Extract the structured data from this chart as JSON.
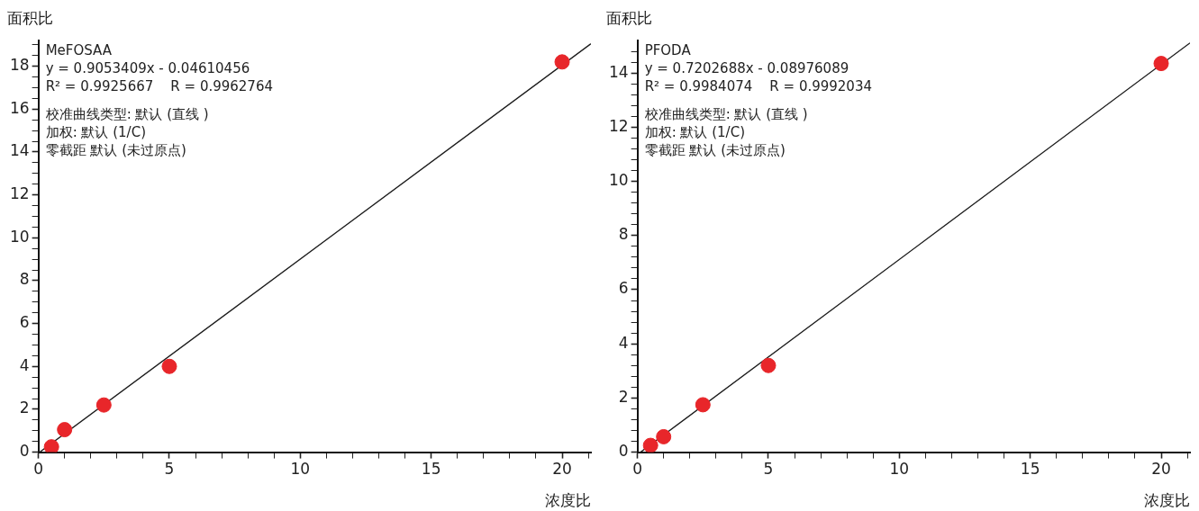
{
  "chart_data": [
    {
      "type": "scatter",
      "title": "MeFOSAA",
      "xlabel": "浓度比",
      "ylabel": "面积比",
      "annotations": [
        "y = 0.9053409x - 0.04610456",
        "R² = 0.9925667    R = 0.9962764",
        "校准曲线类型: 默认 (直线 )",
        "加权: 默认 (1/C)",
        "零截距 默认 (未过原点)"
      ],
      "x": [
        0.5,
        1,
        2.5,
        5,
        20
      ],
      "series": [
        {
          "color": "#e8262a",
          "values": [
            0.25,
            1.05,
            2.2,
            4.0,
            18.2
          ],
          "marker": "circle"
        },
        {
          "type": "line",
          "color": "#1a1a1a",
          "x": [
            0.05,
            21.1
          ],
          "values": [
            0,
            19.05
          ],
          "marker": "none",
          "line_style": "solid"
        }
      ],
      "xlim": [
        0,
        21.1
      ],
      "ylim": [
        0,
        19.2
      ],
      "xticks": [
        0,
        {
          "value": 1,
          "label": null
        },
        {
          "value": 2,
          "label": null
        },
        {
          "value": 3,
          "label": null
        },
        {
          "value": 4,
          "label": null
        },
        5,
        {
          "value": 6,
          "label": null
        },
        {
          "value": 7,
          "label": null
        },
        {
          "value": 8,
          "label": null
        },
        {
          "value": 9,
          "label": null
        },
        10,
        {
          "value": 11,
          "label": null
        },
        {
          "value": 12,
          "label": null
        },
        {
          "value": 13,
          "label": null
        },
        {
          "value": 14,
          "label": null
        },
        15,
        {
          "value": 16,
          "label": null
        },
        {
          "value": 17,
          "label": null
        },
        {
          "value": 18,
          "label": null
        },
        {
          "value": 19,
          "label": null
        },
        20,
        {
          "value": 21,
          "label": null
        }
      ],
      "yticks": [
        0,
        {
          "value": 0.5,
          "label": null
        },
        {
          "value": 1,
          "label": null
        },
        {
          "value": 1.5,
          "label": null
        },
        2,
        {
          "value": 2.5,
          "label": null
        },
        {
          "value": 3,
          "label": null
        },
        {
          "value": 3.5,
          "label": null
        },
        4,
        {
          "value": 4.5,
          "label": null
        },
        {
          "value": 5,
          "label": null
        },
        {
          "value": 5.5,
          "label": null
        },
        6,
        {
          "value": 6.5,
          "label": null
        },
        {
          "value": 7,
          "label": null
        },
        {
          "value": 7.5,
          "label": null
        },
        8,
        {
          "value": 8.5,
          "label": null
        },
        {
          "value": 9,
          "label": null
        },
        {
          "value": 9.5,
          "label": null
        },
        10,
        {
          "value": 10.5,
          "label": null
        },
        {
          "value": 11,
          "label": null
        },
        {
          "value": 11.5,
          "label": null
        },
        12,
        {
          "value": 12.5,
          "label": null
        },
        {
          "value": 13,
          "label": null
        },
        {
          "value": 13.5,
          "label": null
        },
        14,
        {
          "value": 14.5,
          "label": null
        },
        {
          "value": 15,
          "label": null
        },
        {
          "value": 15.5,
          "label": null
        },
        16,
        {
          "value": 16.5,
          "label": null
        },
        {
          "value": 17,
          "label": null
        },
        {
          "value": 17.5,
          "label": null
        },
        18,
        {
          "value": 18.5,
          "label": null
        },
        {
          "value": 19,
          "label": null
        }
      ],
      "grid": false,
      "legend": false
    },
    {
      "type": "scatter",
      "title": "PFODA",
      "xlabel": "浓度比",
      "ylabel": "面积比",
      "annotations": [
        "y = 0.7202688x - 0.08976089",
        "R² = 0.9984074    R = 0.9992034",
        "校准曲线类型: 默认 (直线 )",
        "加权: 默认 (1/C)",
        "零截距 默认 (未过原点)"
      ],
      "x": [
        0.5,
        1,
        2.5,
        5,
        20
      ],
      "series": [
        {
          "color": "#e8262a",
          "values": [
            0.25,
            0.57,
            1.75,
            3.2,
            14.35
          ],
          "marker": "circle"
        },
        {
          "type": "line",
          "color": "#1a1a1a",
          "x": [
            0.12,
            21.1
          ],
          "values": [
            0,
            15.11
          ],
          "marker": "none",
          "line_style": "solid"
        }
      ],
      "xlim": [
        0,
        21.1
      ],
      "ylim": [
        0,
        15.2
      ],
      "xticks": [
        0,
        {
          "value": 1,
          "label": null
        },
        {
          "value": 2,
          "label": null
        },
        {
          "value": 3,
          "label": null
        },
        {
          "value": 4,
          "label": null
        },
        5,
        {
          "value": 6,
          "label": null
        },
        {
          "value": 7,
          "label": null
        },
        {
          "value": 8,
          "label": null
        },
        {
          "value": 9,
          "label": null
        },
        10,
        {
          "value": 11,
          "label": null
        },
        {
          "value": 12,
          "label": null
        },
        {
          "value": 13,
          "label": null
        },
        {
          "value": 14,
          "label": null
        },
        15,
        {
          "value": 16,
          "label": null
        },
        {
          "value": 17,
          "label": null
        },
        {
          "value": 18,
          "label": null
        },
        {
          "value": 19,
          "label": null
        },
        20,
        {
          "value": 21,
          "label": null
        }
      ],
      "yticks": [
        0,
        {
          "value": 0.4,
          "label": null
        },
        {
          "value": 0.8,
          "label": null
        },
        {
          "value": 1.2,
          "label": null
        },
        {
          "value": 1.6,
          "label": null
        },
        2,
        {
          "value": 2.4,
          "label": null
        },
        {
          "value": 2.8,
          "label": null
        },
        {
          "value": 3.2,
          "label": null
        },
        {
          "value": 3.6,
          "label": null
        },
        4,
        {
          "value": 4.4,
          "label": null
        },
        {
          "value": 4.8,
          "label": null
        },
        {
          "value": 5.2,
          "label": null
        },
        {
          "value": 5.6,
          "label": null
        },
        6,
        {
          "value": 6.4,
          "label": null
        },
        {
          "value": 6.8,
          "label": null
        },
        {
          "value": 7.2,
          "label": null
        },
        {
          "value": 7.6,
          "label": null
        },
        8,
        {
          "value": 8.4,
          "label": null
        },
        {
          "value": 8.8,
          "label": null
        },
        {
          "value": 9.2,
          "label": null
        },
        {
          "value": 9.6,
          "label": null
        },
        10,
        {
          "value": 10.4,
          "label": null
        },
        {
          "value": 10.8,
          "label": null
        },
        {
          "value": 11.2,
          "label": null
        },
        {
          "value": 11.6,
          "label": null
        },
        12,
        {
          "value": 12.4,
          "label": null
        },
        {
          "value": 12.8,
          "label": null
        },
        {
          "value": 13.2,
          "label": null
        },
        {
          "value": 13.6,
          "label": null
        },
        14,
        {
          "value": 14.4,
          "label": null
        },
        {
          "value": 14.8,
          "label": null
        }
      ],
      "grid": false,
      "legend": false
    }
  ]
}
